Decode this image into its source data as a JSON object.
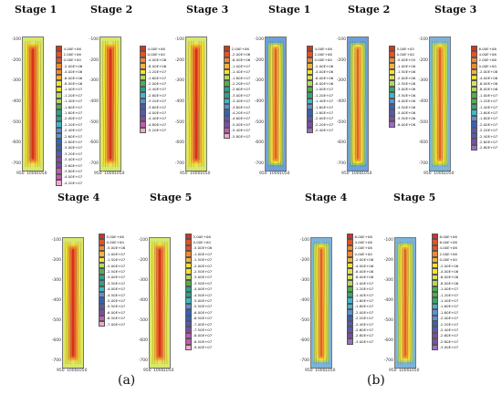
{
  "figure": {
    "label_a": "(a)",
    "label_b": "(b)"
  },
  "panels": [
    {
      "group": "a",
      "title": "Stage 1",
      "y_ticks": [
        "-100",
        "-200",
        "-300",
        "-400",
        "-500",
        "-600",
        "-700"
      ],
      "x_ticks": [
        "950",
        "1000",
        "1050"
      ],
      "legend_values": [
        "4.00E+06",
        "2.00E+06",
        "0.00E+00",
        "-2.00E+06",
        "-4.00E+06",
        "-6.00E+06",
        "-8.00E+06",
        "-1.00E+07",
        "-1.20E+07",
        "-1.40E+07",
        "-1.60E+07",
        "-1.80E+07",
        "-2.00E+07",
        "-2.20E+07",
        "-2.40E+07",
        "-2.60E+07",
        "-2.80E+07",
        "-3.00E+07",
        "-3.20E+07",
        "-3.40E+07",
        "-3.60E+07",
        "-3.80E+07",
        "-4.00E+07",
        "-4.20E+07"
      ],
      "palette": "a"
    },
    {
      "group": "a",
      "title": "Stage 2",
      "y_ticks": [
        "-100",
        "-200",
        "-300",
        "-400",
        "-500",
        "-600",
        "-700"
      ],
      "x_ticks": [
        "950",
        "1000",
        "1050"
      ],
      "legend_values": [
        "4.00E+06",
        "0.00E+00",
        "-4.00E+06",
        "-8.00E+06",
        "-1.20E+07",
        "-1.60E+07",
        "-2.00E+07",
        "-2.40E+07",
        "-2.80E+07",
        "-3.20E+07",
        "-3.60E+07",
        "-4.00E+07",
        "-4.40E+07",
        "-4.80E+07",
        "-5.20E+07"
      ],
      "palette": "a"
    },
    {
      "group": "a",
      "title": "Stage 3",
      "y_ticks": [
        "-100",
        "-200",
        "-300",
        "-400",
        "-500",
        "-600",
        "-700"
      ],
      "x_ticks": [
        "950",
        "1000",
        "1050"
      ],
      "legend_values": [
        "2.00E+06",
        "-2.00E+06",
        "-6.00E+06",
        "-1.00E+07",
        "-1.40E+07",
        "-1.80E+07",
        "-2.20E+07",
        "-2.60E+07",
        "-3.00E+07",
        "-3.40E+07",
        "-3.80E+07",
        "-4.20E+07",
        "-4.60E+07",
        "-5.00E+07",
        "-5.40E+07",
        "-5.80E+07"
      ],
      "palette": "a"
    },
    {
      "group": "a",
      "title": "Stage 4",
      "y_ticks": [
        "-100",
        "-200",
        "-300",
        "-400",
        "-500",
        "-600",
        "-700"
      ],
      "x_ticks": [
        "950",
        "1000",
        "1050"
      ],
      "legend_values": [
        "5.00E+06",
        "0.00E+00",
        "-5.00E+06",
        "-1.00E+07",
        "-1.50E+07",
        "-2.00E+07",
        "-2.50E+07",
        "-3.00E+07",
        "-3.50E+07",
        "-4.00E+07",
        "-4.50E+07",
        "-5.00E+07",
        "-5.50E+07",
        "-6.00E+07",
        "-6.50E+07",
        "-7.00E+07"
      ],
      "palette": "a"
    },
    {
      "group": "a",
      "title": "Stage 5",
      "y_ticks": [
        "-100",
        "-200",
        "-300",
        "-400",
        "-500",
        "-600",
        "-700"
      ],
      "x_ticks": [
        "950",
        "1000",
        "1050"
      ],
      "legend_values": [
        "5.00E+06",
        "0.00E+00",
        "-5.00E+06",
        "-1.00E+07",
        "-1.50E+07",
        "-2.00E+07",
        "-2.50E+07",
        "-3.00E+07",
        "-3.50E+07",
        "-4.00E+07",
        "-4.50E+07",
        "-5.00E+07",
        "-5.50E+07",
        "-6.00E+07",
        "-6.50E+07",
        "-7.00E+07",
        "-7.50E+07",
        "-8.00E+07",
        "-8.50E+07",
        "-9.00E+07"
      ],
      "palette": "a"
    },
    {
      "group": "b",
      "title": "Stage 1",
      "y_ticks": [
        "-100",
        "-200",
        "-300",
        "-400",
        "-500",
        "-600",
        "-700"
      ],
      "x_ticks": [
        "950",
        "1000",
        "1050"
      ],
      "legend_values": [
        "4.00E+06",
        "2.00E+06",
        "0.00E+00",
        "-2.00E+06",
        "-4.00E+06",
        "-6.00E+06",
        "-8.00E+06",
        "-1.00E+07",
        "-1.20E+07",
        "-1.40E+07",
        "-1.60E+07",
        "-1.80E+07",
        "-2.00E+07",
        "-2.20E+07",
        "-2.40E+07"
      ],
      "palette": "b"
    },
    {
      "group": "b",
      "title": "Stage 2",
      "y_ticks": [
        "-100",
        "-200",
        "-300",
        "-400",
        "-500",
        "-600",
        "-700"
      ],
      "x_ticks": [
        "950",
        "1000",
        "1050"
      ],
      "legend_values": [
        "5.00E+05",
        "0.00E+00",
        "-5.00E+05",
        "-1.00E+06",
        "-1.50E+06",
        "-2.00E+06",
        "-2.50E+06",
        "-3.00E+06",
        "-3.50E+06",
        "-4.00E+06",
        "-4.50E+06",
        "-5.00E+06",
        "-5.50E+06",
        "-6.00E+06"
      ],
      "palette": "b"
    },
    {
      "group": "b",
      "title": "Stage 3",
      "y_ticks": [
        "-100",
        "-200",
        "-300",
        "-400",
        "-500",
        "-600",
        "-700"
      ],
      "x_ticks": [
        "950",
        "1000",
        "1050"
      ],
      "legend_values": [
        "6.00E+06",
        "4.00E+06",
        "2.00E+06",
        "0.00E+00",
        "-2.00E+06",
        "-4.00E+06",
        "-6.00E+06",
        "-8.00E+06",
        "-1.00E+07",
        "-1.20E+07",
        "-1.40E+07",
        "-1.60E+07",
        "-1.80E+07",
        "-2.00E+07",
        "-2.20E+07",
        "-2.40E+07",
        "-2.60E+07",
        "-2.80E+07"
      ],
      "palette": "b"
    },
    {
      "group": "b",
      "title": "Stage 4",
      "y_ticks": [
        "-100",
        "-200",
        "-300",
        "-400",
        "-500",
        "-600",
        "-700"
      ],
      "x_ticks": [
        "950",
        "1000",
        "1050"
      ],
      "legend_values": [
        "6.00E+06",
        "4.00E+06",
        "2.00E+06",
        "0.00E+00",
        "-2.00E+06",
        "-4.00E+06",
        "-6.00E+06",
        "-8.00E+06",
        "-1.00E+07",
        "-1.20E+07",
        "-1.40E+07",
        "-1.60E+07",
        "-1.80E+07",
        "-2.00E+07",
        "-2.20E+07",
        "-2.40E+07",
        "-2.60E+07",
        "-2.80E+07",
        "-3.00E+07"
      ],
      "palette": "b"
    },
    {
      "group": "b",
      "title": "Stage 5",
      "y_ticks": [
        "-100",
        "-200",
        "-300",
        "-400",
        "-500",
        "-600",
        "-700"
      ],
      "x_ticks": [
        "950",
        "1000",
        "1050"
      ],
      "legend_values": [
        "8.00E+06",
        "6.00E+06",
        "4.00E+06",
        "2.00E+06",
        "0.00E+00",
        "-2.00E+06",
        "-4.00E+06",
        "-6.00E+06",
        "-8.00E+06",
        "-1.00E+07",
        "-1.20E+07",
        "-1.40E+07",
        "-1.60E+07",
        "-1.80E+07",
        "-2.00E+07",
        "-2.20E+07",
        "-2.40E+07",
        "-2.60E+07",
        "-2.80E+07",
        "-3.00E+07"
      ],
      "palette": "b"
    }
  ],
  "colors": {
    "red": "#d9321c",
    "orange": "#f08a2a",
    "yellow": "#f3e22e",
    "light_green": "#b4d85a",
    "green": "#4fb04a",
    "cyan": "#3fb6c8",
    "blue": "#3561b8",
    "purple": "#7a4ea0",
    "pink": "#f2a6d0"
  }
}
